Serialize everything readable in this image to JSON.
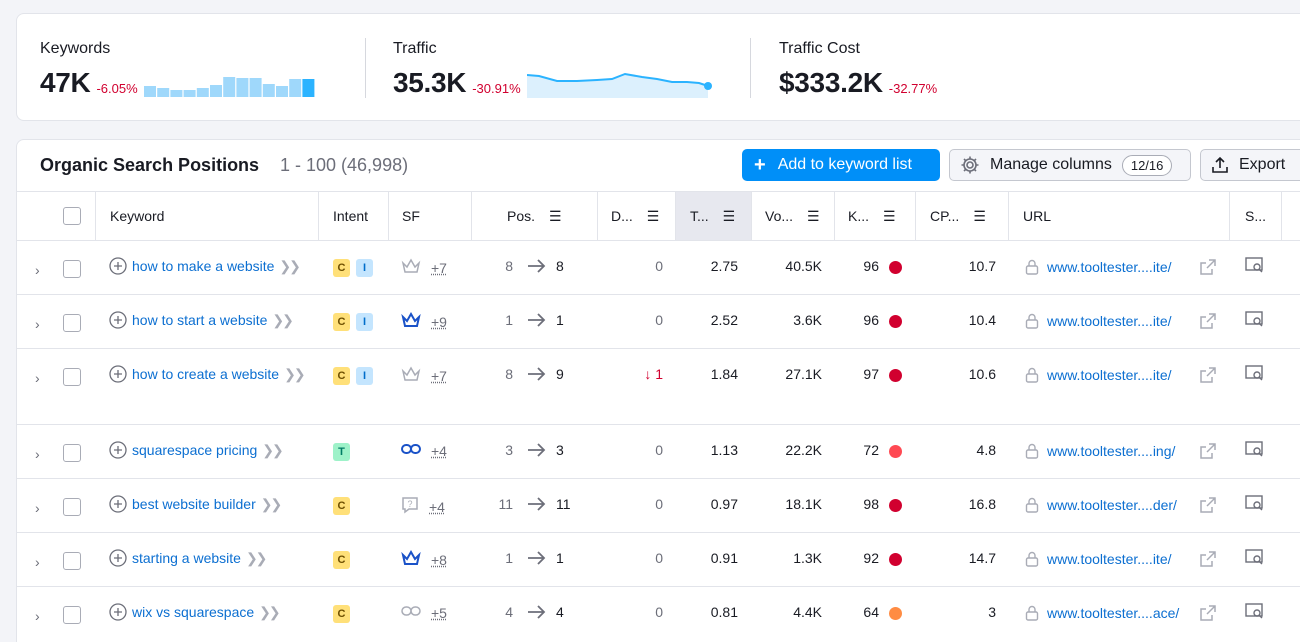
{
  "summary": {
    "keywords": {
      "label": "Keywords",
      "value": "47K",
      "delta": "-6.05%",
      "bars": [
        0.55,
        0.45,
        0.35,
        0.35,
        0.45,
        0.6,
        1.0,
        0.95,
        0.95,
        0.65,
        0.55,
        0.9,
        0.9
      ]
    },
    "traffic": {
      "label": "Traffic",
      "value": "35.3K",
      "delta": "-30.91%"
    },
    "traffic_cost": {
      "label": "Traffic Cost",
      "value": "$333.2K",
      "delta": "-32.77%"
    }
  },
  "table": {
    "title": "Organic Search Positions",
    "range": "1 - 100 (46,998)",
    "add_button": "Add to keyword list",
    "manage_columns": "Manage columns",
    "columns_count": "12/16",
    "export": "Export",
    "headers": {
      "keyword": "Keyword",
      "intent": "Intent",
      "sf": "SF",
      "pos": "Pos.",
      "diff": "D...",
      "traffic": "T...",
      "volume": "Vo...",
      "kd": "K...",
      "cpc": "CP...",
      "url": "URL",
      "serp": "S..."
    },
    "rows": [
      {
        "keyword": "how to make a website",
        "intents": [
          "C",
          "I"
        ],
        "sf_icon": "crown-outline-icon",
        "sf_more": "+7",
        "pos_from": "8",
        "pos_to": "8",
        "diff": "0",
        "traffic": "2.75",
        "volume": "40.5K",
        "kd": "96",
        "kd_color": "#d1002f",
        "cpc": "10.7",
        "url": "www.tooltester....ite/"
      },
      {
        "keyword": "how to start a website",
        "intents": [
          "C",
          "I"
        ],
        "sf_icon": "crown-icon",
        "sf_more": "+9",
        "pos_from": "1",
        "pos_to": "1",
        "diff": "0",
        "traffic": "2.52",
        "volume": "3.6K",
        "kd": "96",
        "kd_color": "#d1002f",
        "cpc": "10.4",
        "url": "www.tooltester....ite/"
      },
      {
        "keyword": "how to create a website",
        "intents": [
          "C",
          "I"
        ],
        "sf_icon": "crown-outline-icon",
        "sf_more": "+7",
        "pos_from": "8",
        "pos_to": "9",
        "diff": "1",
        "diff_dir": "down",
        "traffic": "1.84",
        "volume": "27.1K",
        "kd": "97",
        "kd_color": "#d1002f",
        "cpc": "10.6",
        "url": "www.tooltester....ite/"
      },
      {
        "keyword": "squarespace pricing",
        "intents": [
          "T"
        ],
        "sf_icon": "link-icon",
        "sf_more": "+4",
        "pos_from": "3",
        "pos_to": "3",
        "diff": "0",
        "traffic": "1.13",
        "volume": "22.2K",
        "kd": "72",
        "kd_color": "#ff4953",
        "cpc": "4.8",
        "url": "www.tooltester....ing/"
      },
      {
        "keyword": "best website builder",
        "intents": [
          "C"
        ],
        "sf_icon": "question-box-icon",
        "sf_more": "+4",
        "pos_from": "11",
        "pos_to": "11",
        "diff": "0",
        "traffic": "0.97",
        "volume": "18.1K",
        "kd": "98",
        "kd_color": "#d1002f",
        "cpc": "16.8",
        "url": "www.tooltester....der/"
      },
      {
        "keyword": "starting a website",
        "intents": [
          "C"
        ],
        "sf_icon": "crown-icon",
        "sf_more": "+8",
        "pos_from": "1",
        "pos_to": "1",
        "diff": "0",
        "traffic": "0.91",
        "volume": "1.3K",
        "kd": "92",
        "kd_color": "#d1002f",
        "cpc": "14.7",
        "url": "www.tooltester....ite/"
      },
      {
        "keyword": "wix vs squarespace",
        "intents": [
          "C"
        ],
        "sf_icon": "link-outline-icon",
        "sf_more": "+5",
        "pos_from": "4",
        "pos_to": "4",
        "diff": "0",
        "traffic": "0.81",
        "volume": "4.4K",
        "kd": "64",
        "kd_color": "#ff8c43",
        "cpc": "3",
        "url": "www.tooltester....ace/"
      }
    ]
  }
}
